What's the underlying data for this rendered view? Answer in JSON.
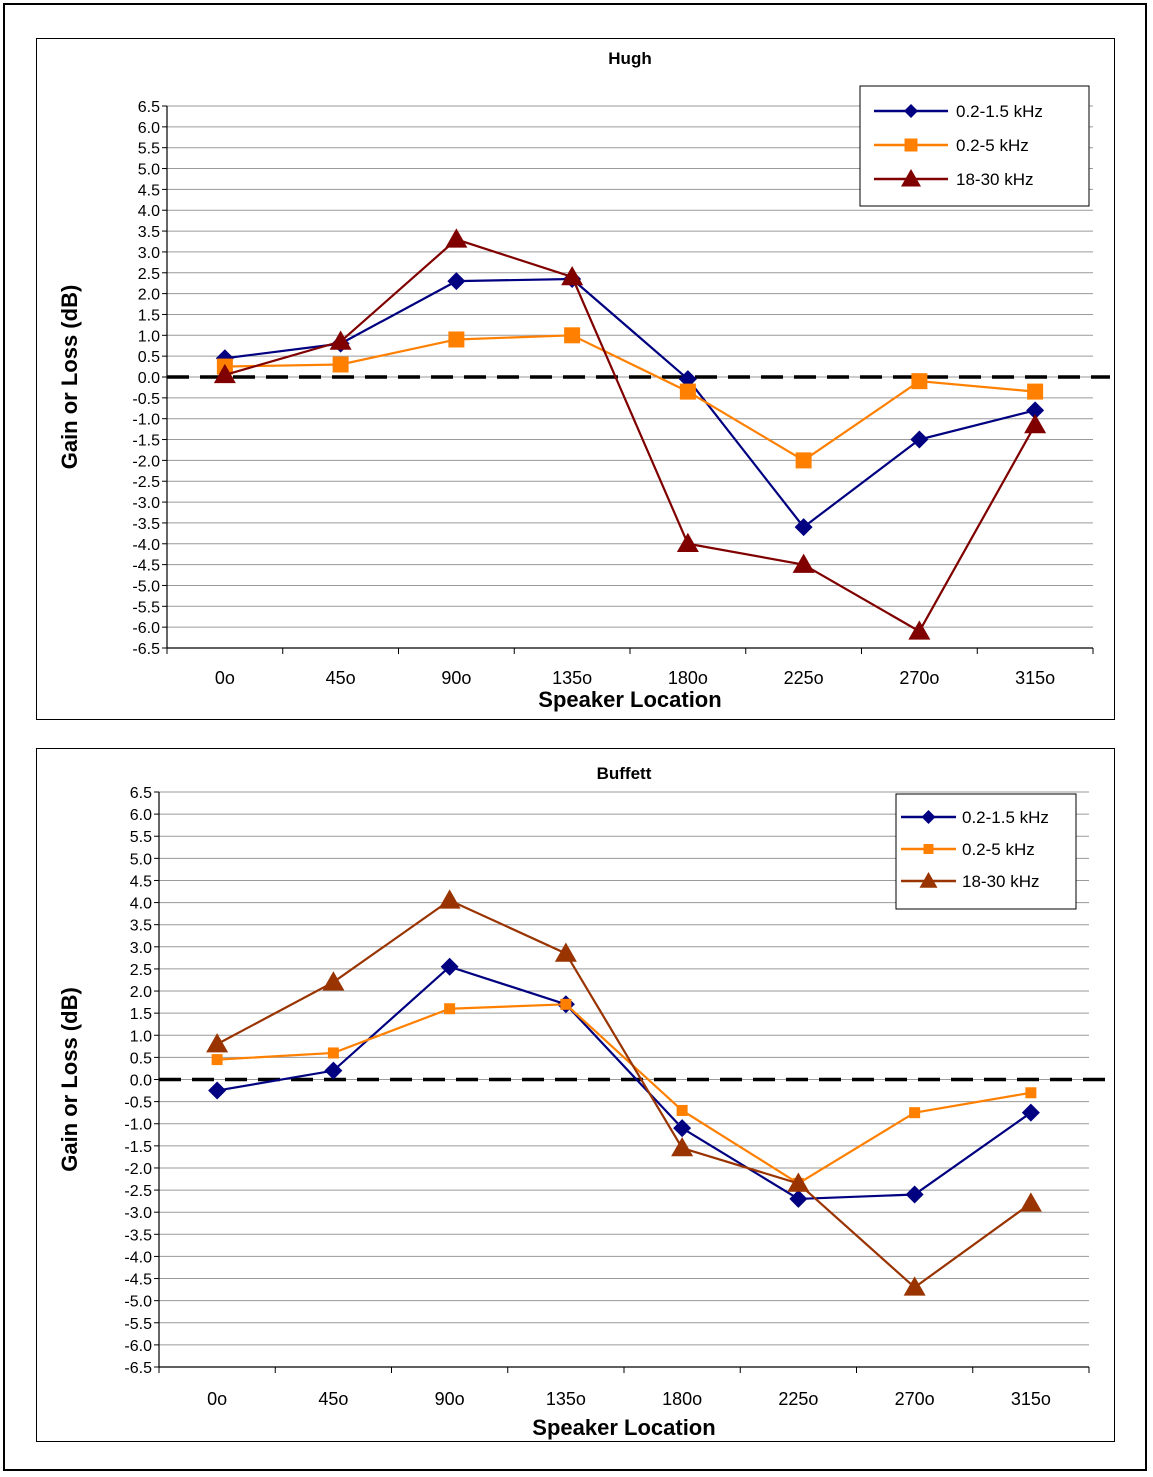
{
  "chart_data": [
    {
      "type": "line",
      "title": "Hugh",
      "xlabel": "Speaker Location",
      "ylabel": "Gain or Loss (dB)",
      "categories": [
        "0o",
        "45o",
        "90o",
        "135o",
        "180o",
        "225o",
        "270o",
        "315o"
      ],
      "ylim": [
        -6.5,
        6.5
      ],
      "ytick_step": 0.5,
      "grid": true,
      "legend": "top-right",
      "reference_line": 0,
      "series": [
        {
          "name": "0.2-1.5 kHz",
          "color": "#000080",
          "marker": "diamond",
          "values": [
            0.45,
            0.8,
            2.3,
            2.35,
            -0.05,
            -3.6,
            -1.5,
            -0.8
          ]
        },
        {
          "name": "0.2-5 kHz",
          "color": "#FF8000",
          "marker": "square",
          "values": [
            0.25,
            0.3,
            0.9,
            1.0,
            -0.35,
            -2.0,
            -0.1,
            -0.35
          ]
        },
        {
          "name": "18-30 kHz",
          "color": "#800000",
          "marker": "triangle",
          "values": [
            0.05,
            0.85,
            3.3,
            2.4,
            -4.0,
            -4.5,
            -6.1,
            -1.15
          ]
        }
      ]
    },
    {
      "type": "line",
      "title": "Buffett",
      "xlabel": "Speaker Location",
      "ylabel": "Gain or Loss (dB)",
      "categories": [
        "0o",
        "45o",
        "90o",
        "135o",
        "180o",
        "225o",
        "270o",
        "315o"
      ],
      "ylim": [
        -6.5,
        6.5
      ],
      "ytick_step": 0.5,
      "grid": true,
      "legend": "top-right",
      "reference_line": 0,
      "series": [
        {
          "name": "0.2-1.5 kHz",
          "color": "#000080",
          "marker": "diamond",
          "values": [
            -0.25,
            0.2,
            2.55,
            1.7,
            -1.1,
            -2.7,
            -2.6,
            -0.75
          ]
        },
        {
          "name": "0.2-5 kHz",
          "color": "#FF8000",
          "marker": "square",
          "values": [
            0.45,
            0.6,
            1.6,
            1.7,
            -0.7,
            -2.35,
            -0.75,
            -0.3
          ]
        },
        {
          "name": "18-30 kHz",
          "color": "#993300",
          "marker": "triangle",
          "values": [
            0.8,
            2.2,
            4.05,
            2.85,
            -1.55,
            -2.35,
            -4.7,
            -2.8
          ]
        }
      ]
    }
  ]
}
